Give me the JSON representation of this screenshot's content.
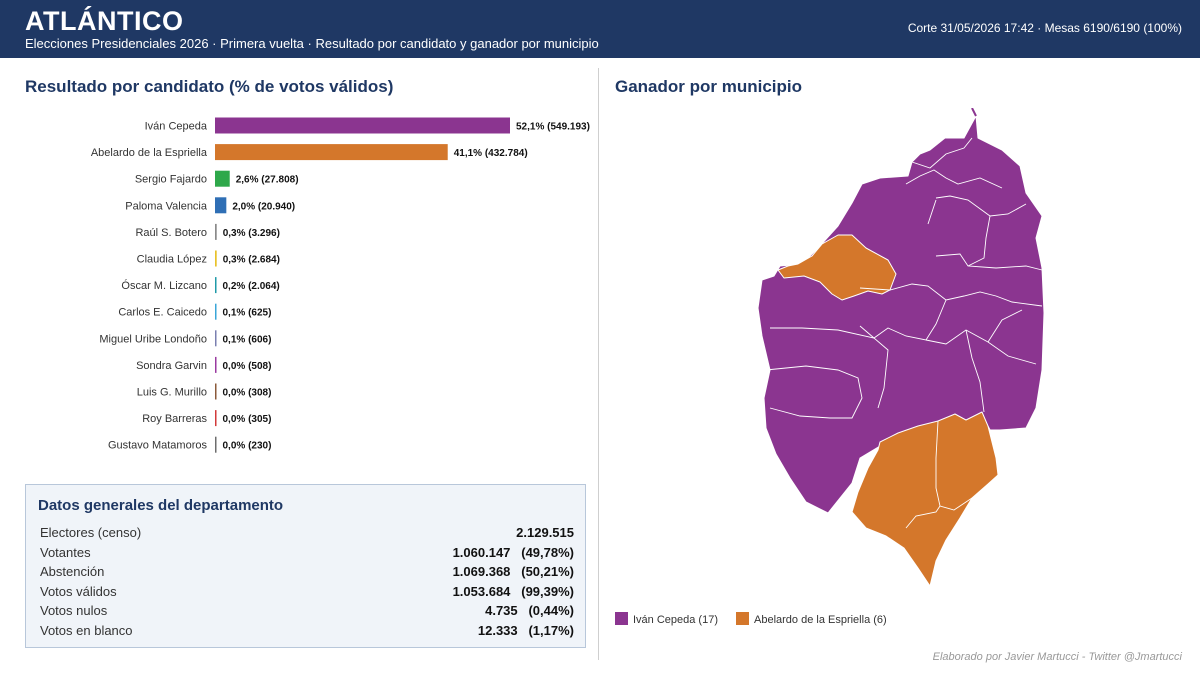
{
  "header": {
    "title": "ATLÁNTICO",
    "subtitle": "Elecciones Presidenciales 2026 · Primera vuelta · Resultado por candidato y ganador por municipio",
    "meta": "Corte 31/05/2026 17:42  ·  Mesas 6190/6190 (100%)"
  },
  "results_title": "Resultado por candidato (% de votos válidos)",
  "map_title": "Ganador por municipio",
  "chart_data": {
    "type": "bar",
    "orientation": "horizontal",
    "title": "Resultado por candidato (% de votos válidos)",
    "categories": [
      "Iván Cepeda",
      "Abelardo de la Espriella",
      "Sergio Fajardo",
      "Paloma Valencia",
      "Raúl S. Botero",
      "Claudia López",
      "Óscar M. Lizcano",
      "Carlos E. Caicedo",
      "Miguel Uribe Londoño",
      "Sondra Garvin",
      "Luis G. Murillo",
      "Roy Barreras",
      "Gustavo Matamoros"
    ],
    "values": [
      52.1,
      41.1,
      2.6,
      2.0,
      0.3,
      0.3,
      0.2,
      0.1,
      0.1,
      0.0,
      0.0,
      0.0,
      0.0
    ],
    "labels": [
      "52,1%  (549.193)",
      "41,1%  (432.784)",
      "2,6%  (27.808)",
      "2,0%  (20.940)",
      "0,3%  (3.296)",
      "0,3%  (2.684)",
      "0,2%  (2.064)",
      "0,1%  (625)",
      "0,1%  (606)",
      "0,0%  (508)",
      "0,0%  (308)",
      "0,0%  (305)",
      "0,0%  (230)"
    ],
    "colors": [
      "#8b3590",
      "#d4772b",
      "#2ea84a",
      "#2f6fb5",
      "#8a8a8a",
      "#e8c22a",
      "#1f9aa8",
      "#3aa6d8",
      "#7a7fb0",
      "#9a3aa0",
      "#8b5a3a",
      "#d23a3a",
      "#6d6d6d"
    ],
    "xlim": [
      0,
      52.1
    ]
  },
  "stats": {
    "title": "Datos generales del departamento",
    "rows": [
      {
        "label": "Electores (censo)",
        "value": "2.129.515"
      },
      {
        "label": "Votantes",
        "value": "1.060.147   (49,78%)"
      },
      {
        "label": "Abstención",
        "value": "1.069.368   (50,21%)"
      },
      {
        "label": "Votos válidos",
        "value": "1.053.684   (99,39%)"
      },
      {
        "label": "Votos nulos",
        "value": "4.735   (0,44%)"
      },
      {
        "label": "Votos en blanco",
        "value": "12.333   (1,17%)"
      }
    ]
  },
  "legend": {
    "items": [
      {
        "label": "Iván Cepeda (17)",
        "color": "#8b3590"
      },
      {
        "label": "Abelardo de la Espriella (6)",
        "color": "#d4772b"
      }
    ]
  },
  "credit": "Elaborado por Javier Martucci - Twitter @Jmartucci"
}
